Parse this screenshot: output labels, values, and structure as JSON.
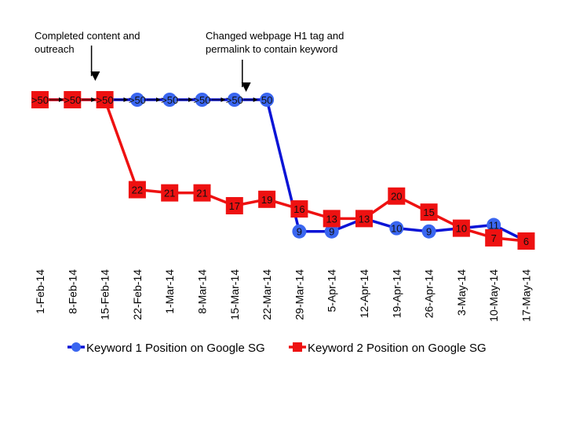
{
  "chart_data": {
    "type": "line",
    "title": "",
    "xlabel": "",
    "ylabel": "",
    "categories": [
      "1-Feb-14",
      "8-Feb-14",
      "15-Feb-14",
      "22-Feb-14",
      "1-Mar-14",
      "8-Mar-14",
      "15-Mar-14",
      "22-Mar-14",
      "29-Mar-14",
      "5-Apr-14",
      "12-Apr-14",
      "19-Apr-14",
      "26-Apr-14",
      "3-May-14",
      "10-May-14",
      "17-May-14"
    ],
    "ylim": [
      50,
      6
    ],
    "y_inverted": true,
    "series": [
      {
        "name": "Keyword 1 Position on Google SG",
        "color": "#0a14d6",
        "marker": "circle",
        "marker_color": "#3a66f0",
        "values": [
          50,
          50,
          50,
          50,
          50,
          50,
          50,
          50,
          9,
          9,
          13,
          10,
          9,
          10,
          11,
          6
        ],
        "labels": [
          ">50",
          ">50",
          ">50",
          ">50",
          ">50",
          ">50",
          ">50",
          "50",
          "9",
          "9",
          "13",
          "10",
          "9",
          "10",
          "11",
          "6"
        ]
      },
      {
        "name": "Keyword 2 Position on Google SG",
        "color": "#ee1111",
        "marker": "square",
        "marker_color": "#ee1111",
        "values": [
          50,
          50,
          50,
          22,
          21,
          21,
          17,
          19,
          16,
          13,
          13,
          20,
          15,
          10,
          7,
          6
        ],
        "labels": [
          ">50",
          ">50",
          ">50",
          "22",
          "21",
          "21",
          "17",
          "19",
          "16",
          "13",
          "13",
          "20",
          "15",
          "10",
          "7",
          "6"
        ]
      }
    ],
    "annotations": [
      {
        "text_lines": [
          "Completed content and",
          "outreach"
        ],
        "category_index": 2
      },
      {
        "text_lines": [
          "Changed webpage H1 tag and",
          "permalink to contain keyword"
        ],
        "category_index": 6
      }
    ],
    "legend": {
      "position": "bottom"
    },
    "grid": false
  }
}
